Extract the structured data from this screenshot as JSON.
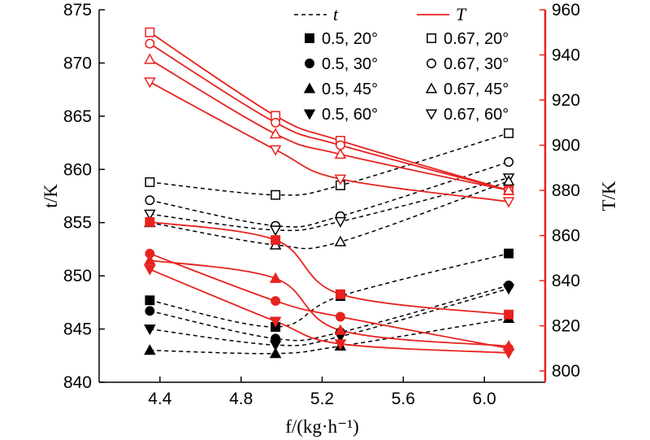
{
  "chart_data": {
    "type": "line",
    "xlabel": "f/(kg·h⁻¹)",
    "ylabel_left": "t/K",
    "ylabel_right": "T/K",
    "xlim": [
      4.1,
      6.3
    ],
    "ylim_left": [
      840,
      875
    ],
    "ylim_right": [
      795,
      960
    ],
    "xticks": [
      4.4,
      4.8,
      5.2,
      5.6,
      6.0
    ],
    "xtick_labels": [
      "4.4",
      "4.8",
      "5.2",
      "5.6",
      "6.0"
    ],
    "yticks_left": [
      840,
      845,
      850,
      855,
      860,
      865,
      870,
      875
    ],
    "yticks_right": [
      800,
      820,
      840,
      860,
      880,
      900,
      920,
      940,
      960
    ],
    "x": [
      4.35,
      4.97,
      5.29,
      6.12
    ],
    "legend": {
      "line_t": "t",
      "line_T": "T",
      "markers": [
        {
          "label": "0.5, 20°",
          "marker": "square",
          "filled": true
        },
        {
          "label": "0.67, 20°",
          "marker": "square",
          "filled": false
        },
        {
          "label": "0.5, 30°",
          "marker": "circle",
          "filled": true
        },
        {
          "label": "0.67, 30°",
          "marker": "circle",
          "filled": false
        },
        {
          "label": "0.5, 45°",
          "marker": "triangle-up",
          "filled": true
        },
        {
          "label": "0.67, 45°",
          "marker": "triangle-up",
          "filled": false
        },
        {
          "label": "0.5, 60°",
          "marker": "triangle-down",
          "filled": true
        },
        {
          "label": "0.67, 60°",
          "marker": "triangle-down",
          "filled": false
        }
      ]
    },
    "series_t": [
      {
        "name": "0.67, 20°",
        "marker": "square",
        "filled": false,
        "values": [
          858.8,
          857.6,
          858.5,
          863.4
        ]
      },
      {
        "name": "0.67, 30°",
        "marker": "circle",
        "filled": false,
        "values": [
          857.1,
          854.7,
          855.6,
          860.7
        ]
      },
      {
        "name": "0.67, 60°",
        "marker": "triangle-down",
        "filled": false,
        "values": [
          855.8,
          854.3,
          855.1,
          859.2
        ]
      },
      {
        "name": "0.67, 45°",
        "marker": "triangle-up",
        "filled": false,
        "values": [
          855.0,
          852.9,
          853.2,
          858.9
        ]
      },
      {
        "name": "0.5, 20°",
        "marker": "square",
        "filled": true,
        "values": [
          847.7,
          845.2,
          848.1,
          852.1
        ]
      },
      {
        "name": "0.5, 30°",
        "marker": "circle",
        "filled": true,
        "values": [
          846.7,
          844.1,
          844.7,
          849.1
        ]
      },
      {
        "name": "0.5, 60°",
        "marker": "triangle-down",
        "filled": true,
        "values": [
          845.0,
          843.5,
          844.3,
          848.8
        ]
      },
      {
        "name": "0.5, 45°",
        "marker": "triangle-up",
        "filled": true,
        "values": [
          843.0,
          842.7,
          843.4,
          846.0
        ]
      }
    ],
    "series_T": [
      {
        "name": "0.67, 20°",
        "marker": "square",
        "filled": false,
        "values": [
          950,
          913,
          902,
          880
        ]
      },
      {
        "name": "0.67, 30°",
        "marker": "circle",
        "filled": false,
        "values": [
          945,
          910,
          900,
          880
        ]
      },
      {
        "name": "0.67, 45°",
        "marker": "triangle-up",
        "filled": false,
        "values": [
          938,
          905,
          896,
          880
        ]
      },
      {
        "name": "0.67, 60°",
        "marker": "triangle-down",
        "filled": false,
        "values": [
          928,
          898,
          885,
          875
        ]
      },
      {
        "name": "0.5, 20°",
        "marker": "square",
        "filled": true,
        "values": [
          866,
          858,
          834,
          825
        ]
      },
      {
        "name": "0.5, 30°",
        "marker": "circle",
        "filled": true,
        "values": [
          852,
          831,
          824,
          810
        ]
      },
      {
        "name": "0.5, 45°",
        "marker": "triangle-up",
        "filled": true,
        "values": [
          849,
          841,
          818,
          811
        ]
      },
      {
        "name": "0.5, 60°",
        "marker": "triangle-down",
        "filled": true,
        "values": [
          845,
          822,
          812,
          808
        ]
      }
    ],
    "colors": {
      "t": "#000000",
      "T": "#e8231f",
      "right_axis": "#e8231f"
    }
  }
}
